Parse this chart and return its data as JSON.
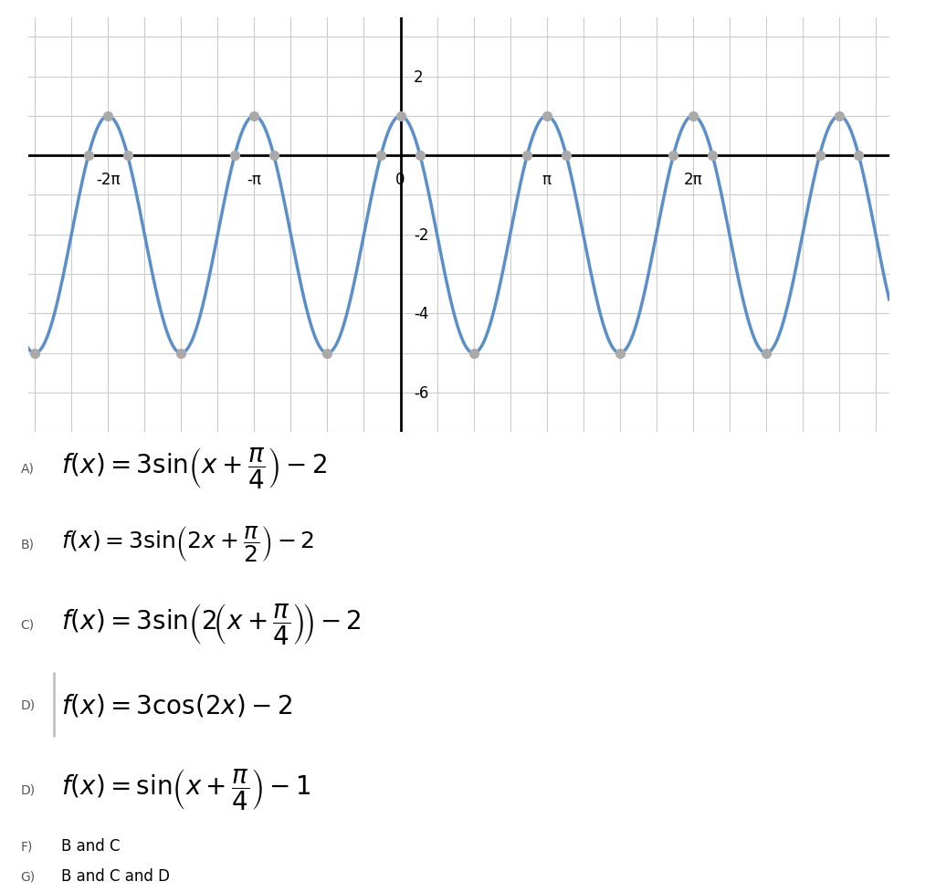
{
  "graph": {
    "x_min": -8.0,
    "x_max": 10.5,
    "y_min": -7.0,
    "y_max": 3.5,
    "y_ticks": [
      2,
      -2,
      -4,
      -6
    ],
    "x_tick_labels": [
      {
        "value": -6.283185307,
        "label": "-2π"
      },
      {
        "value": -3.141592654,
        "label": "-π"
      },
      {
        "value": 0,
        "label": "0"
      },
      {
        "value": 3.141592654,
        "label": "π"
      },
      {
        "value": 6.283185307,
        "label": "2π"
      }
    ],
    "curve_color": "#5b8fc9",
    "curve_linewidth": 2.5,
    "dot_color": "#aaaaaa",
    "dot_size": 50,
    "axis_color": "#000000",
    "grid_color": "#cccccc",
    "grid_linewidth": 0.8,
    "background_color": "#ffffff"
  },
  "answers": [
    {
      "label": "A)",
      "latex": "f(x) = 3\\sin\\!\\left(x+\\dfrac{\\pi}{4}\\right)-2",
      "size": 20
    },
    {
      "label": "B)",
      "latex": "f(x) = 3\\sin\\!\\left(2x+\\dfrac{\\pi}{2}\\right)-2",
      "size": 18
    },
    {
      "label": "C)",
      "latex": "f(x) = 3\\sin\\!\\left(2\\!\\left(x+\\dfrac{\\pi}{4}\\right)\\!\\right)-2",
      "size": 20
    },
    {
      "label": "D)",
      "latex": "f(x) = 3\\cos(2x)-2",
      "size": 20,
      "has_bar": true
    },
    {
      "label": "D)",
      "latex": "f(x) = \\sin\\!\\left(x+\\dfrac{\\pi}{4}\\right)-1",
      "size": 20
    },
    {
      "label": "F)",
      "text": "B and C",
      "size": 12
    },
    {
      "label": "G)",
      "text": "B and C and D",
      "size": 12
    }
  ]
}
